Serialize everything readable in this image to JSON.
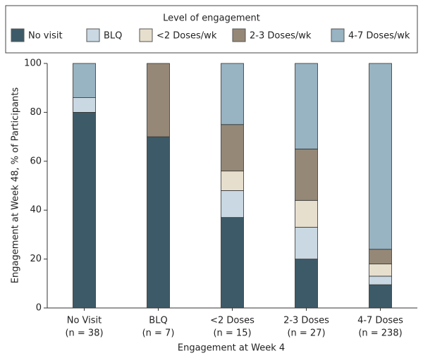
{
  "chart_data": {
    "type": "stacked_bar",
    "legend_title": "Level of engagement",
    "x_label": "Engagement at Week 4",
    "y_label": "Engagement at Week 48, % of Participants",
    "categories": [
      [
        "No Visit",
        "(n = 38)"
      ],
      [
        "BLQ",
        "(n = 7)"
      ],
      [
        "<2 Doses",
        "(n = 15)"
      ],
      [
        "2-3 Doses",
        "(n = 27)"
      ],
      [
        "4-7 Doses",
        "(n = 238)"
      ]
    ],
    "series": [
      {
        "name": "No visit",
        "color": "#3d5a68",
        "values": [
          80,
          70,
          37,
          20,
          9.5
        ]
      },
      {
        "name": "BLQ",
        "color": "#c9d8e2",
        "values": [
          6,
          0,
          11,
          13,
          3.5
        ]
      },
      {
        "name": "<2 Doses/wk",
        "color": "#e7dfcd",
        "values": [
          0,
          0,
          8,
          11,
          5
        ]
      },
      {
        "name": "2-3 Doses/wk",
        "color": "#968877",
        "values": [
          0,
          30,
          19,
          21,
          6
        ]
      },
      {
        "name": "4-7 Doses/wk",
        "color": "#98b3c2",
        "values": [
          14,
          0,
          25,
          35,
          76
        ]
      }
    ],
    "ylim": [
      0,
      100
    ],
    "yticks": [
      0,
      20,
      40,
      60,
      80,
      100
    ]
  }
}
